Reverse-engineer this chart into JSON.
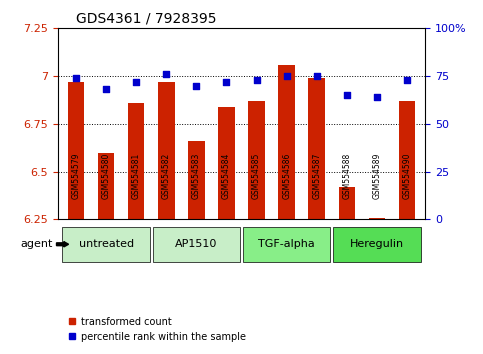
{
  "title": "GDS4361 / 7928395",
  "samples": [
    "GSM554579",
    "GSM554580",
    "GSM554581",
    "GSM554582",
    "GSM554583",
    "GSM554584",
    "GSM554585",
    "GSM554586",
    "GSM554587",
    "GSM554588",
    "GSM554589",
    "GSM554590"
  ],
  "transformed_counts": [
    6.97,
    6.6,
    6.86,
    6.97,
    6.66,
    6.84,
    6.87,
    7.06,
    6.99,
    6.42,
    6.26,
    6.87
  ],
  "percentile_ranks": [
    74,
    68,
    72,
    76,
    70,
    72,
    73,
    75,
    75,
    65,
    64,
    73
  ],
  "ylim_left": [
    6.25,
    7.25
  ],
  "ylim_right": [
    0,
    100
  ],
  "yticks_left": [
    6.25,
    6.5,
    6.75,
    7.0,
    7.25
  ],
  "yticks_right": [
    0,
    25,
    50,
    75,
    100
  ],
  "ytick_labels_left": [
    "6.25",
    "6.5",
    "6.75",
    "7",
    "7.25"
  ],
  "ytick_labels_right": [
    "0",
    "25",
    "50",
    "75",
    "100%"
  ],
  "hlines": [
    6.5,
    6.75,
    7.0
  ],
  "bar_color": "#cc2200",
  "dot_color": "#0000cc",
  "agent_groups": [
    {
      "label": "untreated",
      "start": 0,
      "end": 2,
      "color": "#aaeebb"
    },
    {
      "label": "AP1510",
      "start": 3,
      "end": 5,
      "color": "#aaeebb"
    },
    {
      "label": "TGF-alpha",
      "start": 6,
      "end": 8,
      "color": "#88ee88"
    },
    {
      "label": "Heregulin",
      "start": 9,
      "end": 11,
      "color": "#55dd55"
    }
  ],
  "legend_items": [
    {
      "label": "transformed count",
      "color": "#cc2200",
      "marker": "s"
    },
    {
      "label": "percentile rank within the sample",
      "color": "#0000cc",
      "marker": "s"
    }
  ],
  "agent_label": "agent",
  "background_color": "#ffffff",
  "plot_bg": "#ffffff",
  "bar_bottom": 6.25,
  "dot_scale_min": 6.25,
  "dot_scale_max": 7.25,
  "percentile_min": 0,
  "percentile_max": 100
}
